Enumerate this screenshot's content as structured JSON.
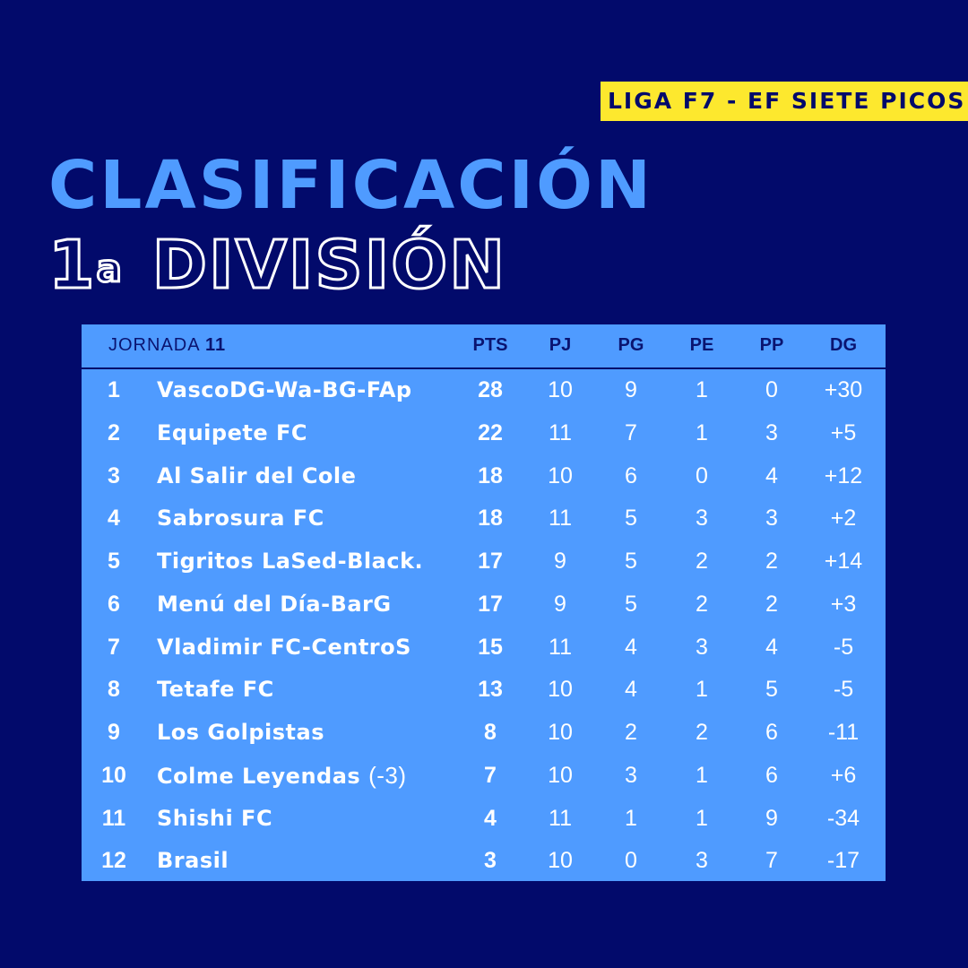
{
  "league": "LIGA F7 - EF SIETE PICOS",
  "title": "CLASIFICACIÓN",
  "subtitle": {
    "ordinal": "1",
    "ordinal_suffix": "a",
    "text": "DIVISIÓN"
  },
  "colors": {
    "background": "#020a6b",
    "accent": "#4f9bff",
    "badge": "#fde82e"
  },
  "table": {
    "jornada_label": "JORNADA",
    "jornada_number": "11",
    "headers": {
      "pts": "PTS",
      "pj": "PJ",
      "pg": "PG",
      "pe": "PE",
      "pp": "PP",
      "dg": "DG"
    },
    "rows": [
      {
        "pos": "1",
        "team": "VascoDG-Wa-BG-FAp",
        "note": "",
        "pts": "28",
        "pj": "10",
        "pg": "9",
        "pe": "1",
        "pp": "0",
        "dg": "+30"
      },
      {
        "pos": "2",
        "team": "Equipete FC",
        "note": "",
        "pts": "22",
        "pj": "11",
        "pg": "7",
        "pe": "1",
        "pp": "3",
        "dg": "+5"
      },
      {
        "pos": "3",
        "team": "Al Salir del Cole",
        "note": "",
        "pts": "18",
        "pj": "10",
        "pg": "6",
        "pe": "0",
        "pp": "4",
        "dg": "+12"
      },
      {
        "pos": "4",
        "team": "Sabrosura FC",
        "note": "",
        "pts": "18",
        "pj": "11",
        "pg": "5",
        "pe": "3",
        "pp": "3",
        "dg": "+2"
      },
      {
        "pos": "5",
        "team": "Tigritos LaSed-Black.",
        "note": "",
        "pts": "17",
        "pj": "9",
        "pg": "5",
        "pe": "2",
        "pp": "2",
        "dg": "+14"
      },
      {
        "pos": "6",
        "team": "Menú del Día-BarG",
        "note": "",
        "pts": "17",
        "pj": "9",
        "pg": "5",
        "pe": "2",
        "pp": "2",
        "dg": "+3"
      },
      {
        "pos": "7",
        "team": "Vladimir FC-CentroS",
        "note": "",
        "pts": "15",
        "pj": "11",
        "pg": "4",
        "pe": "3",
        "pp": "4",
        "dg": "-5"
      },
      {
        "pos": "8",
        "team": "Tetafe FC",
        "note": "",
        "pts": "13",
        "pj": "10",
        "pg": "4",
        "pe": "1",
        "pp": "5",
        "dg": "-5"
      },
      {
        "pos": "9",
        "team": "Los Golpistas",
        "note": "",
        "pts": "8",
        "pj": "10",
        "pg": "2",
        "pe": "2",
        "pp": "6",
        "dg": "-11"
      },
      {
        "pos": "10",
        "team": "Colme Leyendas",
        "note": "(-3)",
        "pts": "7",
        "pj": "10",
        "pg": "3",
        "pe": "1",
        "pp": "6",
        "dg": "+6"
      },
      {
        "pos": "11",
        "team": "Shishi FC",
        "note": "",
        "pts": "4",
        "pj": "11",
        "pg": "1",
        "pe": "1",
        "pp": "9",
        "dg": "-34"
      },
      {
        "pos": "12",
        "team": "Brasil",
        "note": "",
        "pts": "3",
        "pj": "10",
        "pg": "0",
        "pe": "3",
        "pp": "7",
        "dg": "-17"
      }
    ]
  }
}
